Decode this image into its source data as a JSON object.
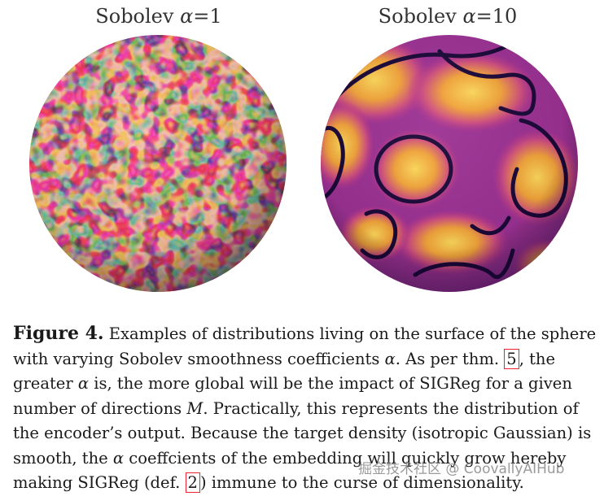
{
  "panels": [
    {
      "title_prefix": "Sobolev ",
      "title_symbol": "α",
      "title_suffix": "=1"
    },
    {
      "title_prefix": "Sobolev ",
      "title_symbol": "α",
      "title_suffix": "=10"
    }
  ],
  "colormap": {
    "dark": "#1b0838",
    "mid": "#b9348b",
    "orange": "#e5751f",
    "bright": "#fcd85a"
  },
  "caption": {
    "label": "Figure 4.",
    "l1_text": " Examples of distributions living on the surface of the sphere",
    "l2_a": "with varying Sobolev smoothness coefficients ",
    "l2_sym": "α",
    "l2_b": ". As per thm. ",
    "l2_ref": "5",
    "l2_c": ", the",
    "l3_a": "greater ",
    "l3_sym": "α",
    "l3_b": " is, the more global will be the impact of SIGReg for a given",
    "l4_a": "number of directions ",
    "l4_sym": "M",
    "l4_b": ". Practically, this represents the distribution of",
    "l5": "the encoder’s output. Because the target density (isotropic Gaussian) is",
    "l6_a": "smooth, the ",
    "l6_sym": "α",
    "l6_b": " coeffcients of the embedding will quickly grow hereby",
    "l7_a": "making SIGReg (def. ",
    "l7_ref": "2",
    "l7_b": ") immune to the curse of dimensionality."
  },
  "watermark": "掘金技术社区 @ CoovallyAIHub"
}
